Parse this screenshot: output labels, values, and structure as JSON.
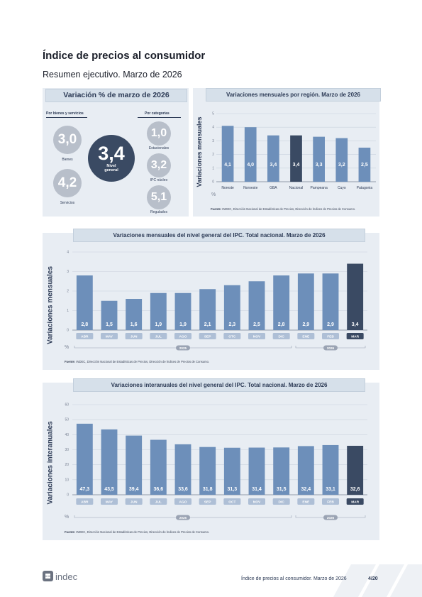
{
  "document": {
    "title": "Índice de precios al consumidor",
    "subtitle": "Resumen ejecutivo. Marzo de 2026"
  },
  "summary": {
    "title": "Variación % de marzo de 2026",
    "left_label": "Por bienes y servicios",
    "right_label": "Por categorías",
    "bienes": {
      "value": "3,0",
      "label": "Bienes"
    },
    "servicios": {
      "value": "4,2",
      "label": "Servicios"
    },
    "general": {
      "value": "3,4",
      "label_line1": "Nivel",
      "label_line2": "general"
    },
    "estacionales": {
      "value": "1,0",
      "label": "Estacionales"
    },
    "nucleo": {
      "value": "3,2",
      "label": "IPC núcleo"
    },
    "regulados": {
      "value": "5,1",
      "label": "Regulados"
    }
  },
  "chart_data": [
    {
      "type": "bar",
      "title": "Variaciones mensuales por región. Marzo de 2026",
      "ylabel": "Variaciones mensuales",
      "unit": "%",
      "ylim": [
        0,
        5
      ],
      "yticks": [
        0,
        1,
        2,
        3,
        4,
        5
      ],
      "categories": [
        "Noreste",
        "Noroeste",
        "GBA",
        "Nacional",
        "Pampeana",
        "Cuyo",
        "Patagonia"
      ],
      "values": [
        4.1,
        4.0,
        3.4,
        3.4,
        3.3,
        3.2,
        2.5
      ],
      "labels": [
        "4,1",
        "4,0",
        "3,4",
        "3,4",
        "3,3",
        "3,2",
        "2,5"
      ],
      "highlight": "Nacional",
      "grid": true,
      "bar_color": "#6d8fba",
      "highlight_color": "#3a4a63",
      "source_bold": "Fuente:",
      "source": " INDEC, Dirección Nacional de Estadísticas de Precios, Dirección de Índices de Precios de Consumo."
    },
    {
      "type": "bar",
      "title": "Variaciones mensuales del nivel general del IPC. Total nacional. Marzo de 2026",
      "ylabel": "Variaciones mensuales",
      "unit": "%",
      "ylim": [
        0,
        4
      ],
      "yticks": [
        0,
        1,
        2,
        3,
        4
      ],
      "categories": [
        "ABR",
        "MAY",
        "JUN",
        "JUL",
        "AGO",
        "SEP",
        "OTC",
        "NOV",
        "DIC",
        "ENE",
        "FEB",
        "MAR"
      ],
      "values": [
        2.8,
        1.5,
        1.6,
        1.9,
        1.9,
        2.1,
        2.3,
        2.5,
        2.8,
        2.9,
        2.9,
        3.4
      ],
      "labels": [
        "2,8",
        "1,5",
        "1,6",
        "1,9",
        "1,9",
        "2,1",
        "2,3",
        "2,5",
        "2,8",
        "2,9",
        "2,9",
        "3,4"
      ],
      "highlight": "MAR",
      "year_groups": [
        {
          "label": "2025",
          "count": 9
        },
        {
          "label": "2026",
          "count": 3
        }
      ],
      "grid": true,
      "bar_color": "#6d8fba",
      "highlight_color": "#3a4a63",
      "source_bold": "Fuente:",
      "source": " INDEC, Dirección Nacional de Estadísticas de Precios, Dirección de Índices de Precios de Consumo."
    },
    {
      "type": "bar",
      "title": "Variaciones interanuales del nivel general del IPC. Total nacional. Marzo de 2026",
      "ylabel": "Variaciones interanuales",
      "unit": "%",
      "ylim": [
        0,
        60
      ],
      "yticks": [
        0,
        10,
        20,
        30,
        40,
        50,
        60
      ],
      "categories": [
        "ABR",
        "MAY",
        "JUN",
        "JUL",
        "AGO",
        "SEP",
        "OCT",
        "NOV",
        "DIC",
        "ENE",
        "FEB",
        "MAR"
      ],
      "values": [
        47.3,
        43.5,
        39.4,
        36.6,
        33.6,
        31.8,
        31.3,
        31.4,
        31.5,
        32.4,
        33.1,
        32.6
      ],
      "labels": [
        "47,3",
        "43,5",
        "39,4",
        "36,6",
        "33,6",
        "31,8",
        "31,3",
        "31,4",
        "31,5",
        "32,4",
        "33,1",
        "32,6"
      ],
      "highlight": "MAR",
      "year_groups": [
        {
          "label": "2025",
          "count": 9
        },
        {
          "label": "2026",
          "count": 3
        }
      ],
      "grid": true,
      "bar_color": "#6d8fba",
      "highlight_color": "#3a4a63",
      "source_bold": "Fuente:",
      "source": " INDEC, Dirección Nacional de Estadísticas de Precios, Dirección de Índices de Precios de Consumo."
    }
  ],
  "footer": {
    "logo": "indec",
    "logo_icon": "indec-logo-icon",
    "text": "Índice de precios al consumidor. Marzo de 2026",
    "page": "4/20"
  }
}
